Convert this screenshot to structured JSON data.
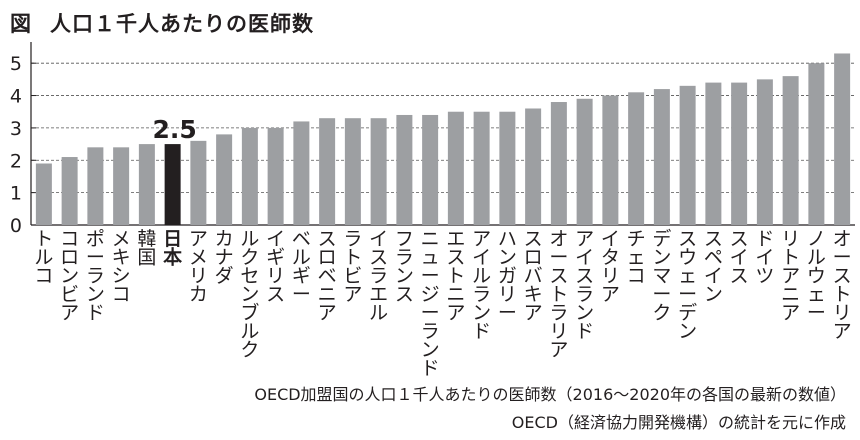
{
  "figure_label": "図",
  "title": "人口１千人あたりの医師数",
  "highlight_value": "2.5",
  "notes": [
    "OECD加盟国の人口１千人あたりの医師数（2016〜2020年の各国の最新の数値）",
    "OECD（経済協力開発機構）の統計を元に作成"
  ],
  "colors": {
    "bar": "#9d9fa2",
    "highlight": "#231f20",
    "axis": "#231f20",
    "grid": "#555555"
  },
  "chart_data": {
    "type": "bar",
    "title": "人口１千人あたりの医師数",
    "xlabel": "",
    "ylabel": "",
    "ylim": [
      0,
      5.5
    ],
    "yticks": [
      "0",
      "1",
      "2",
      "3",
      "4",
      "5"
    ],
    "grid": true,
    "highlight": "日本",
    "categories": [
      "トルコ",
      "コロンビア",
      "ポーランド",
      "メキシコ",
      "韓国",
      "日本",
      "アメリカ",
      "カナダ",
      "ルクセンブルク",
      "イギリス",
      "ベルギー",
      "スロベニア",
      "ラトビア",
      "イスラエル",
      "フランス",
      "ニュージーランド",
      "エストニア",
      "アイルランド",
      "ハンガリー",
      "スロバキア",
      "オーストラリア",
      "アイスランド",
      "イタリア",
      "チェコ",
      "デンマーク",
      "スウェーデン",
      "スペイン",
      "スイス",
      "ドイツ",
      "リトアニア",
      "ノルウェー",
      "オーストリア"
    ],
    "values": [
      1.9,
      2.1,
      2.4,
      2.4,
      2.5,
      2.5,
      2.6,
      2.8,
      3.0,
      3.0,
      3.2,
      3.3,
      3.3,
      3.3,
      3.4,
      3.4,
      3.5,
      3.5,
      3.5,
      3.6,
      3.8,
      3.9,
      4.0,
      4.1,
      4.2,
      4.3,
      4.4,
      4.4,
      4.5,
      4.6,
      5.0,
      5.3
    ]
  }
}
